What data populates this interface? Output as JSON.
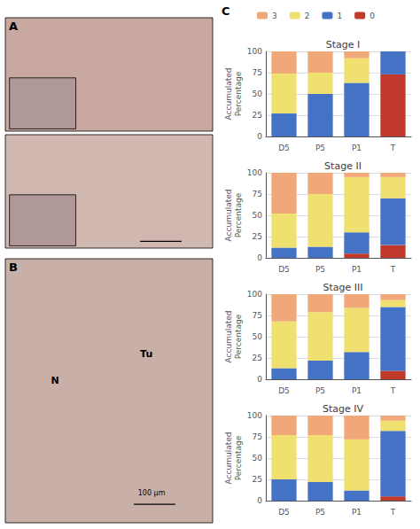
{
  "chart_data": [
    {
      "type": "bar",
      "title": "Stage I",
      "categories": [
        "D5",
        "P5",
        "P1",
        "T"
      ],
      "ylabel": "Accumulated\nPercentage",
      "ylim": [
        0,
        100
      ],
      "yticks": [
        0,
        25,
        50,
        75,
        100
      ],
      "stacked": true,
      "grid": true,
      "legend": "top",
      "series": [
        {
          "name": "0",
          "color": "#c0392b",
          "values": [
            0,
            0,
            0,
            73
          ]
        },
        {
          "name": "1",
          "color": "#4472c4",
          "values": [
            27,
            50,
            63,
            27
          ]
        },
        {
          "name": "2",
          "color": "#f0e070",
          "values": [
            47,
            25,
            29,
            0
          ]
        },
        {
          "name": "3",
          "color": "#f0a878",
          "values": [
            26,
            25,
            8,
            0
          ]
        }
      ]
    },
    {
      "type": "bar",
      "title": "Stage II",
      "categories": [
        "D5",
        "P5",
        "P1",
        "T"
      ],
      "ylabel": "Accumulated\nPercentage",
      "ylim": [
        0,
        100
      ],
      "yticks": [
        0,
        25,
        50,
        75,
        100
      ],
      "stacked": true,
      "grid": true,
      "legend": "top",
      "series": [
        {
          "name": "0",
          "color": "#c0392b",
          "values": [
            0,
            0,
            5,
            15
          ]
        },
        {
          "name": "1",
          "color": "#4472c4",
          "values": [
            12,
            13,
            25,
            55
          ]
        },
        {
          "name": "2",
          "color": "#f0e070",
          "values": [
            40,
            62,
            65,
            25
          ]
        },
        {
          "name": "3",
          "color": "#f0a878",
          "values": [
            48,
            25,
            5,
            5
          ]
        }
      ]
    },
    {
      "type": "bar",
      "title": "Stage III",
      "categories": [
        "D5",
        "P5",
        "P1",
        "T"
      ],
      "ylabel": "Accumulated\nPercentage",
      "ylim": [
        0,
        100
      ],
      "yticks": [
        0,
        25,
        50,
        75,
        100
      ],
      "stacked": true,
      "grid": true,
      "legend": "top",
      "series": [
        {
          "name": "0",
          "color": "#c0392b",
          "values": [
            0,
            0,
            0,
            10
          ]
        },
        {
          "name": "1",
          "color": "#4472c4",
          "values": [
            13,
            22,
            32,
            75
          ]
        },
        {
          "name": "2",
          "color": "#f0e070",
          "values": [
            55,
            57,
            52,
            8
          ]
        },
        {
          "name": "3",
          "color": "#f0a878",
          "values": [
            32,
            21,
            16,
            7
          ]
        }
      ]
    },
    {
      "type": "bar",
      "title": "Stage IV",
      "categories": [
        "D5",
        "P5",
        "P1",
        "T"
      ],
      "ylabel": "Accumulated\nPercentage",
      "ylim": [
        0,
        100
      ],
      "yticks": [
        0,
        25,
        50,
        75,
        100
      ],
      "stacked": true,
      "grid": true,
      "legend": "top",
      "series": [
        {
          "name": "0",
          "color": "#c0392b",
          "values": [
            0,
            0,
            0,
            5
          ]
        },
        {
          "name": "1",
          "color": "#4472c4",
          "values": [
            25,
            22,
            12,
            77
          ]
        },
        {
          "name": "2",
          "color": "#f0e070",
          "values": [
            52,
            55,
            60,
            12
          ]
        },
        {
          "name": "3",
          "color": "#f0a878",
          "values": [
            23,
            23,
            28,
            6
          ]
        }
      ]
    }
  ],
  "annotations": [
    "A",
    "B",
    "C",
    "N",
    "Tu",
    "100 μm"
  ]
}
